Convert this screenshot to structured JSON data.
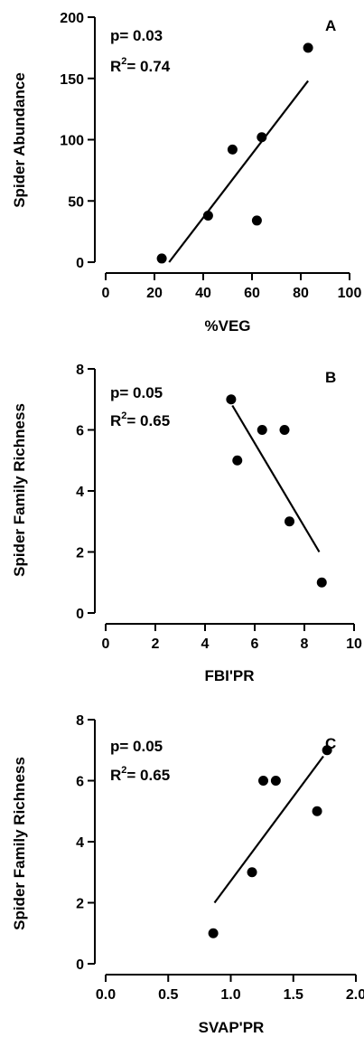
{
  "chart_data": [
    {
      "type": "scatter",
      "panel_label": "A",
      "xlabel": "%VEG",
      "ylabel": "Spider Abundance",
      "xlim": [
        0,
        100
      ],
      "ylim": [
        0,
        200
      ],
      "xticks": [
        0,
        20,
        40,
        60,
        80,
        100
      ],
      "yticks": [
        0,
        50,
        100,
        150,
        200
      ],
      "points": [
        {
          "x": 23,
          "y": 3
        },
        {
          "x": 42,
          "y": 38
        },
        {
          "x": 52,
          "y": 92
        },
        {
          "x": 62,
          "y": 34
        },
        {
          "x": 64,
          "y": 102
        },
        {
          "x": 83,
          "y": 175
        }
      ],
      "fit_line": {
        "x": [
          26,
          83
        ],
        "y": [
          0,
          148
        ]
      },
      "p_text": "p= 0.03",
      "r2_prefix": "R",
      "r2_sup": "2",
      "r2_value": "= 0.74"
    },
    {
      "type": "scatter",
      "panel_label": "B",
      "xlabel": "FBI'PR",
      "ylabel": "Spider Family Richness",
      "xlim": [
        0,
        10
      ],
      "ylim": [
        0,
        8
      ],
      "xticks": [
        0,
        2,
        4,
        6,
        8,
        10
      ],
      "yticks": [
        0,
        2,
        4,
        6,
        8
      ],
      "points": [
        {
          "x": 5.05,
          "y": 7
        },
        {
          "x": 5.3,
          "y": 5
        },
        {
          "x": 6.3,
          "y": 6
        },
        {
          "x": 7.2,
          "y": 6
        },
        {
          "x": 7.4,
          "y": 3
        },
        {
          "x": 8.7,
          "y": 1
        }
      ],
      "fit_line": {
        "x": [
          5.1,
          8.6
        ],
        "y": [
          6.8,
          2.0
        ]
      },
      "p_text": "p= 0.05",
      "r2_prefix": "R",
      "r2_sup": "2",
      "r2_value": "= 0.65"
    },
    {
      "type": "scatter",
      "panel_label": "C",
      "xlabel": "SVAP'PR",
      "ylabel": "Spider Family Richness",
      "xlim": [
        0,
        2
      ],
      "ylim": [
        0,
        8
      ],
      "xticks": [
        0.0,
        0.5,
        1.0,
        1.5,
        2.0
      ],
      "xtick_labels": [
        "0.0",
        "0.5",
        "1.0",
        "1.5",
        "2.0"
      ],
      "yticks": [
        0,
        2,
        4,
        6,
        8
      ],
      "points": [
        {
          "x": 0.86,
          "y": 1
        },
        {
          "x": 1.17,
          "y": 3
        },
        {
          "x": 1.26,
          "y": 6
        },
        {
          "x": 1.36,
          "y": 6
        },
        {
          "x": 1.69,
          "y": 5
        },
        {
          "x": 1.77,
          "y": 7
        }
      ],
      "fit_line": {
        "x": [
          0.87,
          1.74
        ],
        "y": [
          2.0,
          6.8
        ]
      },
      "p_text": "p= 0.05",
      "r2_prefix": "R",
      "r2_sup": "2",
      "r2_value": "= 0.65"
    }
  ]
}
